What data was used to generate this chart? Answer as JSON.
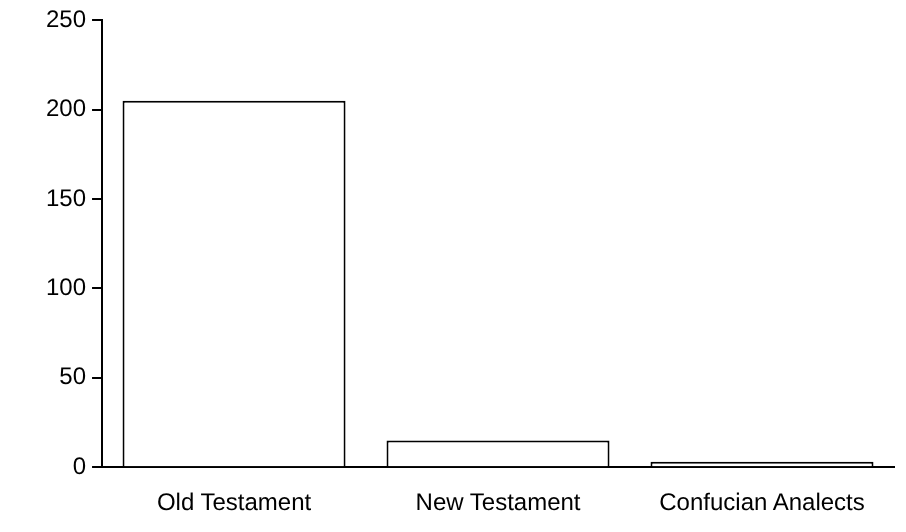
{
  "chart_data": {
    "type": "bar",
    "categories": [
      "Old Testament",
      "New Testament",
      "Confucian Analects"
    ],
    "values": [
      205,
      15,
      3
    ],
    "color": "#ffffff",
    "ylim": [
      0,
      250
    ],
    "yticks": [
      0,
      50,
      100,
      150,
      200,
      250
    ],
    "grid": false,
    "legend": false
  }
}
